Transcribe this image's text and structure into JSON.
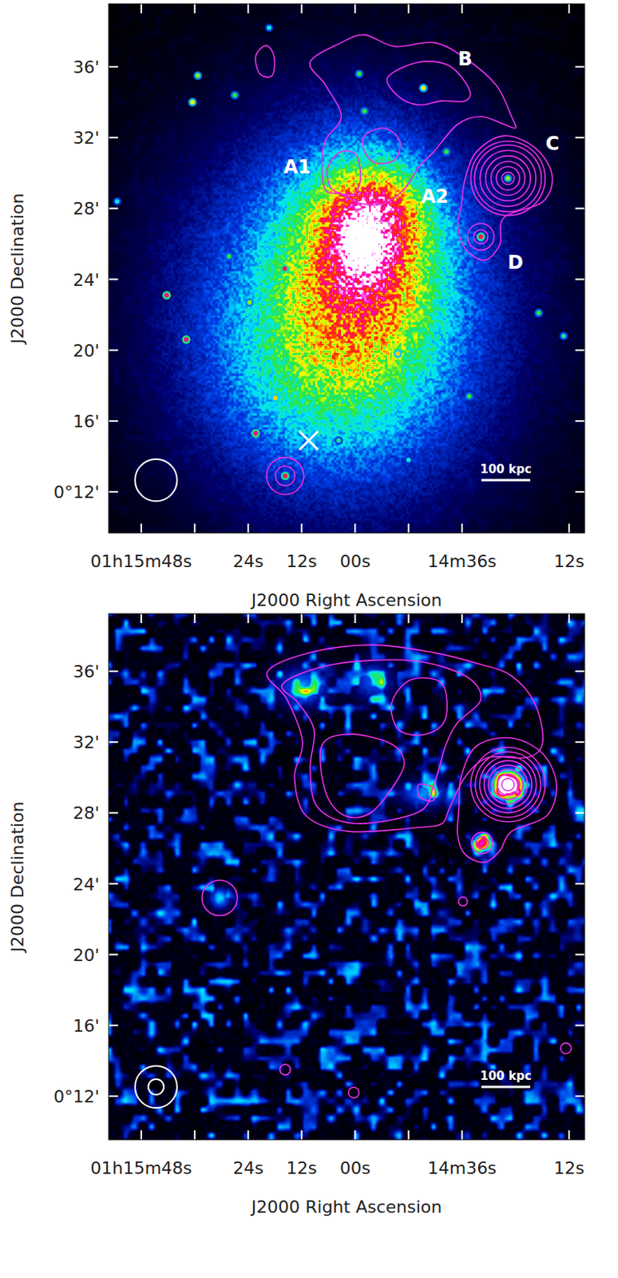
{
  "chart_data": [
    {
      "type": "image",
      "x_label": "J2000 Right Ascension",
      "y_label": "J2000 Declination",
      "xlim": [
        115.3,
        8.5
      ],
      "ylim": [
        9.68,
        39.55
      ],
      "xticks": [
        {
          "value": 108,
          "label": "01h15m48s"
        },
        {
          "value": 84,
          "label": "24s"
        },
        {
          "value": 72,
          "label": "12s"
        },
        {
          "value": 60,
          "label": "00s"
        },
        {
          "value": 36,
          "label": "14m36s"
        },
        {
          "value": 12,
          "label": "12s"
        }
      ],
      "xminor": [
        96,
        48
      ],
      "yticks": [
        {
          "value": 36,
          "label": "36'"
        },
        {
          "value": 32,
          "label": "32'"
        },
        {
          "value": 28,
          "label": "28'"
        },
        {
          "value": 24,
          "label": "24'"
        },
        {
          "value": 20,
          "label": "20'"
        },
        {
          "value": 16,
          "label": "16'"
        },
        {
          "value": 12,
          "label": "0°12'"
        }
      ],
      "emission": [
        {
          "ra": 63,
          "dec": 22,
          "sx": 6.5,
          "sy": 7.5,
          "amp": 0.42
        },
        {
          "ra": 58,
          "dec": 25.5,
          "sx": 3,
          "sy": 4,
          "amp": 0.4
        },
        {
          "ra": 55.5,
          "dec": 27.8,
          "sx": 1.8,
          "sy": 1.6,
          "amp": 0.3
        },
        {
          "ra": 58.3,
          "dec": 25.8,
          "sx": 1.0,
          "sy": 1.4,
          "amp": 0.35
        },
        {
          "ra": 67,
          "dec": 18.5,
          "sx": 4,
          "sy": 3.5,
          "amp": 0.12
        }
      ],
      "sources": {
        "ra": [
          95.3,
          96.5,
          87.0,
          79.3,
          59.1,
          57.9,
          44.7,
          39.5,
          31.8,
          25.7,
          102.3,
          97.9,
          75.8,
          88.3,
          77.9,
          82.3,
          75.7,
          50.4,
          34.4,
          18.8,
          13.2,
          113.4,
          63.7,
          48.0,
          83.7
        ],
        "dec": [
          35.5,
          34.0,
          34.4,
          38.2,
          35.6,
          33.5,
          34.8,
          31.2,
          26.4,
          29.7,
          23.1,
          20.6,
          24.6,
          25.3,
          17.3,
          15.3,
          12.9,
          19.8,
          17.4,
          22.1,
          20.8,
          28.4,
          14.9,
          13.8,
          22.7
        ],
        "peak": [
          0.55,
          0.6,
          0.5,
          0.4,
          0.5,
          0.5,
          0.6,
          0.5,
          0.8,
          0.55,
          0.85,
          0.85,
          0.8,
          0.5,
          0.65,
          0.85,
          0.8,
          0.65,
          0.5,
          0.5,
          0.45,
          0.4,
          0.45,
          0.4,
          0.55
        ]
      },
      "contours": {
        "color": "#e632e6",
        "polygons": [
          {
            "ra": [
              70.1,
              63.1,
              57.9,
              51.0,
              42.3,
              35.3,
              28.3,
              24.9,
              24.0,
              26.6,
              31.8,
              37.0,
              42.3,
              45.7,
              49.2,
              53.6,
              58.8,
              63.1,
              66.6,
              67.5,
              66.6,
              63.1,
              66.6
            ],
            "dec": [
              36.26,
              37.36,
              37.8,
              37.14,
              37.36,
              36.48,
              34.95,
              33.19,
              32.54,
              32.75,
              33.19,
              32.75,
              31.22,
              30.34,
              29.03,
              28.28,
              28.28,
              28.81,
              29.03,
              30.56,
              31.88,
              33.19,
              34.95
            ]
          },
          {
            "ra": [
              52.7,
              45.7,
              38.8,
              34.4,
              35.3,
              40.5,
              45.7,
              50.1
            ],
            "dec": [
              35.39,
              36.26,
              36.04,
              34.73,
              34.07,
              34.07,
              33.85,
              34.29
            ]
          },
          {
            "ra": [
              65.7,
              63.1,
              59.7,
              58.8,
              60.5,
              64.9,
              66.3
            ],
            "dec": [
              30.56,
              31.22,
              31.0,
              29.68,
              28.81,
              29.03,
              29.9
            ]
          },
          {
            "ra": [
              57.9,
              53.6,
              50.1,
              51.0,
              55.3,
              57.9
            ],
            "dec": [
              32.1,
              32.54,
              31.88,
              30.78,
              30.56,
              31.22
            ]
          },
          {
            "ra": [
              82.3,
              80.0,
              78.2,
              78.6,
              81.4
            ],
            "dec": [
              36.6,
              37.2,
              36.6,
              35.5,
              35.6
            ]
          },
          {
            "ra": [
              37.0,
              35.3,
              31.0,
              27.5,
              26.6,
              17.9,
              15.8,
              19.7,
              26.6,
              32.7,
              35.3,
              36.2
            ],
            "dec": [
              27.05,
              25.74,
              25.08,
              25.96,
              27.49,
              28.37,
              29.9,
              31.44,
              32.1,
              31.22,
              29.68,
              28.15
            ]
          }
        ],
        "circles": [
          {
            "ra": 25.7,
            "dec": 29.7,
            "radii": [
              0.35,
              0.66,
              0.96,
              1.27,
              1.58,
              1.89,
              2.1
            ]
          },
          {
            "ra": 31.8,
            "dec": 26.4,
            "radii": [
              0.4,
              0.75
            ]
          },
          {
            "ra": 75.7,
            "dec": 12.9,
            "radii": [
              0.55,
              1.05
            ]
          }
        ]
      },
      "labels": [
        {
          "text": "A1",
          "ra": 73.0,
          "dec": 30.4
        },
        {
          "text": "B",
          "ra": 35.3,
          "dec": 36.5
        },
        {
          "text": "C",
          "ra": 15.7,
          "dec": 31.7
        },
        {
          "text": "A2",
          "ra": 42.1,
          "dec": 28.7
        },
        {
          "text": "D",
          "ra": 24.0,
          "dec": 25.0
        }
      ],
      "cross": {
        "ra": 70.4,
        "dec": 14.9
      },
      "beam_arcmin": [
        2.37
      ],
      "scale_bar": {
        "label": "100 kpc",
        "length_arcmin": 2.76
      }
    },
    {
      "type": "image",
      "x_label": "J2000 Right Ascension",
      "y_label": "J2000 Declination",
      "xlim": [
        115.3,
        8.5
      ],
      "ylim": [
        9.54,
        39.25
      ],
      "xticks": [
        {
          "value": 108,
          "label": "01h15m48s"
        },
        {
          "value": 84,
          "label": "24s"
        },
        {
          "value": 72,
          "label": "12s"
        },
        {
          "value": 60,
          "label": "00s"
        },
        {
          "value": 36,
          "label": "14m36s"
        },
        {
          "value": 12,
          "label": "12s"
        }
      ],
      "xminor": [
        96,
        48
      ],
      "yticks": [
        {
          "value": 36,
          "label": "36'"
        },
        {
          "value": 32,
          "label": "32'"
        },
        {
          "value": 28,
          "label": "28'"
        },
        {
          "value": 24,
          "label": "24'"
        },
        {
          "value": 20,
          "label": "20'"
        },
        {
          "value": 16,
          "label": "16'"
        },
        {
          "value": 12,
          "label": "0°12'"
        }
      ],
      "emission": [
        {
          "ra": 25.7,
          "dec": 29.6,
          "sx": 0.55,
          "sy": 0.5,
          "amp": 1.4
        },
        {
          "ra": 31.6,
          "dec": 26.3,
          "sx": 0.35,
          "sy": 0.35,
          "amp": 0.7
        },
        {
          "ra": 71.8,
          "dec": 35.1,
          "sx": 1.0,
          "sy": 0.8,
          "amp": 0.3
        },
        {
          "ra": 44.5,
          "dec": 29.1,
          "sx": 1.0,
          "sy": 0.5,
          "amp": 0.3
        },
        {
          "ra": 56,
          "dec": 35.5,
          "sx": 0.8,
          "sy": 0.8,
          "amp": 0.25
        },
        {
          "ra": 90.4,
          "dec": 23.2,
          "sx": 0.4,
          "sy": 0.4,
          "amp": 0.35
        }
      ],
      "contours": {
        "color": "#e632e6",
        "polygons": [
          {
            "ra": [
              79.7,
              70.1,
              56.2,
              42.3,
              31.8,
              24.9,
              19.7,
              17.9,
              21.4,
              30.1,
              35.3,
              38.8,
              40.5,
              45.7,
              61.4,
              71.0,
              73.6,
              71.8,
              75.3
            ],
            "dec": [
              35.96,
              37.05,
              37.49,
              37.05,
              36.39,
              35.74,
              34.2,
              32.0,
              31.13,
              31.13,
              30.04,
              28.28,
              27.4,
              27.18,
              26.96,
              27.84,
              30.04,
              32.0,
              34.42
            ]
          },
          {
            "ra": [
              76.2,
              64.9,
              47.5,
              35.3,
              31.8,
              37.0,
              39.7,
              42.3,
              45.7,
              59.7,
              68.3,
              70.1,
              69.2,
              72.7
            ],
            "dec": [
              35.3,
              36.39,
              36.61,
              35.74,
              34.42,
              33.1,
              31.79,
              29.6,
              28.06,
              27.4,
              28.28,
              30.47,
              32.67,
              34.2
            ]
          },
          {
            "ra": [
              51.8,
              47.5,
              40.5,
              39.7,
              44.0,
              50.1
            ],
            "dec": [
              34.2,
              35.52,
              35.3,
              33.32,
              32.45,
              32.67
            ]
          },
          {
            "ra": [
              67.5,
              61.4,
              52.7,
              49.2,
              50.1,
              56.2,
              62.3,
              66.6
            ],
            "dec": [
              31.79,
              32.45,
              32.0,
              31.13,
              30.04,
              28.06,
              27.84,
              29.16
            ]
          },
          {
            "ra": [
              45.7,
              42.3,
              42.5,
              45.5
            ],
            "dec": [
              29.6,
              29.4,
              28.7,
              28.9
            ]
          },
          {
            "ra": [
              37.0,
              35.3,
              31.0,
              27.5,
              24.9,
              17.0,
              14.8,
              17.9,
              24.9,
              32.7,
              36.2,
              36.7
            ],
            "dec": [
              26.75,
              25.65,
              25.21,
              25.87,
              26.96,
              27.84,
              29.6,
              31.35,
              32.23,
              31.79,
              30.04,
              28.28
            ]
          }
        ],
        "circles": [
          {
            "ra": 25.7,
            "dec": 29.6,
            "radii": [
              0.35,
              0.6,
              0.85,
              1.1,
              1.35,
              1.6,
              1.85,
              2.1
            ]
          },
          {
            "ra": 31.5,
            "dec": 26.3,
            "radii": [
              0.35,
              0.6
            ]
          },
          {
            "ra": 90.4,
            "dec": 23.2,
            "radii": [
              1.0
            ]
          },
          {
            "ra": 60.3,
            "dec": 12.2,
            "radii": [
              0.3
            ]
          },
          {
            "ra": 75.7,
            "dec": 13.5,
            "radii": [
              0.3
            ]
          },
          {
            "ra": 12.7,
            "dec": 14.7,
            "radii": [
              0.3
            ]
          },
          {
            "ra": 35.8,
            "dec": 23.0,
            "radii": [
              0.25
            ]
          }
        ]
      },
      "beam_arcmin": [
        2.37,
        0.88
      ],
      "scale_bar": {
        "label": "100 kpc",
        "length_arcmin": 2.76
      }
    }
  ]
}
